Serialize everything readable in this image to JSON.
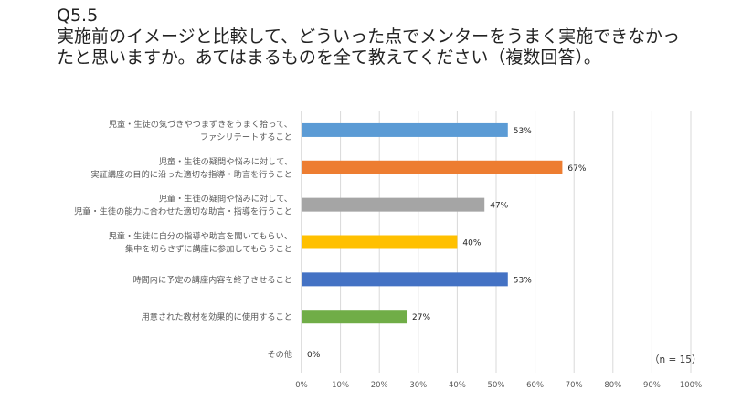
{
  "title": "Q5.5\n実施前のイメージと比較して、どういった点でメンターをうまく実施できなかったと思いますか。あてはまるものを全て教えてください（複数回答）。",
  "note": "（n = 15）",
  "chart_data": {
    "type": "bar",
    "orientation": "horizontal",
    "categories": [
      [
        "児童・生徒の気づきやつまずきをうまく拾って、",
        "ファシリテートすること"
      ],
      [
        "児童・生徒の疑問や悩みに対して、",
        "実証講座の目的に沿った適切な指導・助言を行うこと"
      ],
      [
        "児童・生徒の疑問や悩みに対して、",
        "児童・生徒の能力に合わせた適切な助言・指導を行うこと"
      ],
      [
        "児童・生徒に自分の指導や助言を聞いてもらい、",
        "集中を切らさずに講座に参加してもらうこと"
      ],
      [
        "時間内に予定の講座内容を終了させること"
      ],
      [
        "用意された教材を効果的に使用すること"
      ],
      [
        "その他"
      ]
    ],
    "values": [
      53,
      67,
      47,
      40,
      53,
      27,
      0
    ],
    "value_labels": [
      "53%",
      "67%",
      "47%",
      "40%",
      "53%",
      "27%",
      "0%"
    ],
    "colors": [
      "#5b9bd5",
      "#ed7d31",
      "#a5a5a5",
      "#ffc000",
      "#4472c4",
      "#70ad47",
      "#5b9bd5"
    ],
    "xlim": [
      0,
      100
    ],
    "xticks": [
      "0%",
      "10%",
      "20%",
      "30%",
      "40%",
      "50%",
      "60%",
      "70%",
      "80%",
      "90%",
      "100%"
    ],
    "grid": true,
    "gridline_color": "#d9d9d9",
    "label_color": "#595959"
  }
}
